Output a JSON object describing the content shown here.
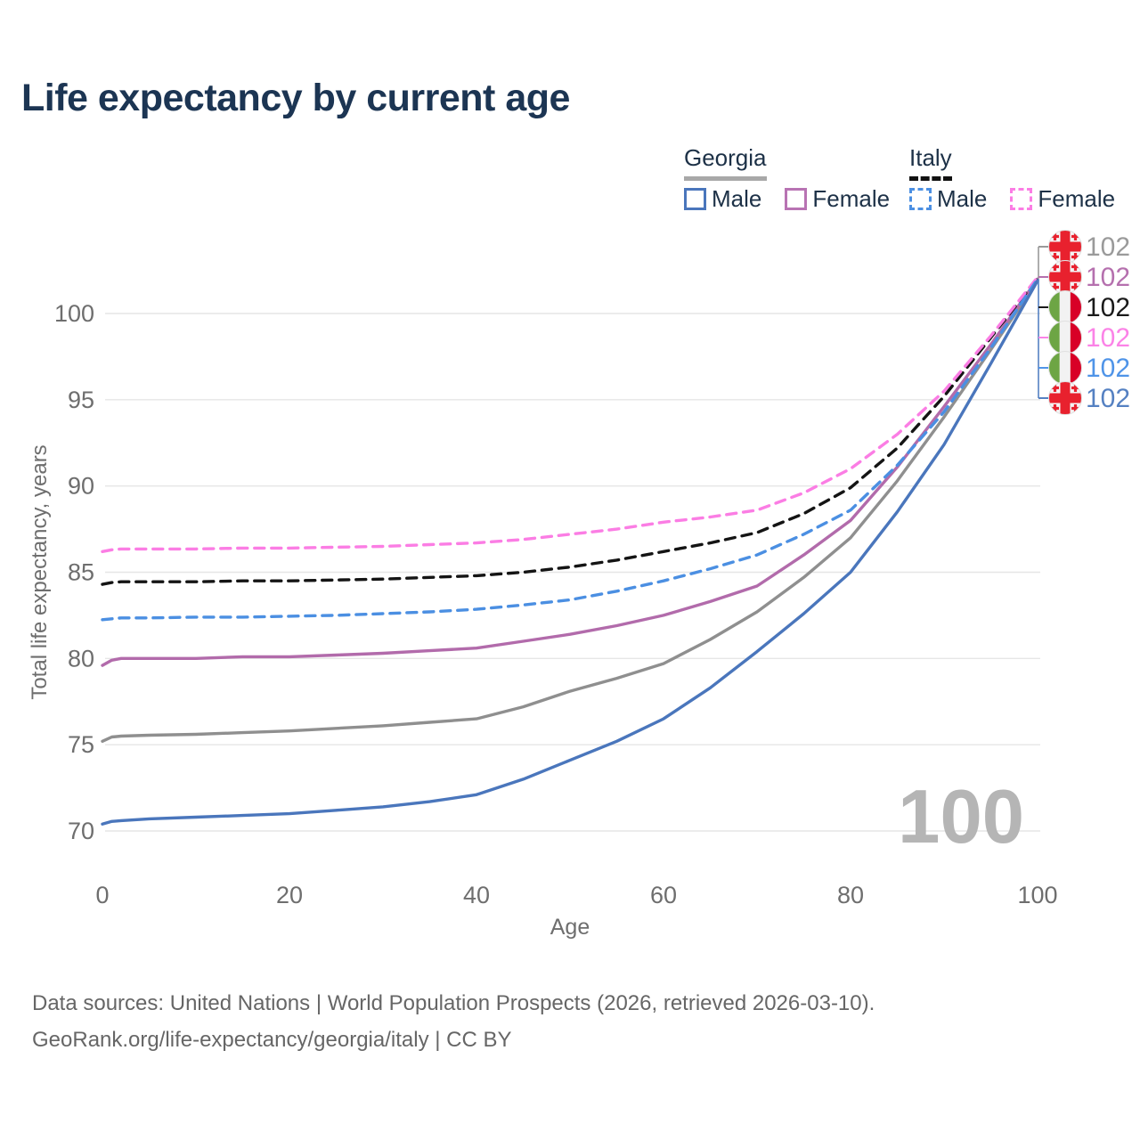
{
  "title": "Life expectancy by current age",
  "legend": {
    "groups": [
      {
        "country": "Georgia",
        "underline": "solid",
        "underline_color": "#a8a8a8",
        "items": [
          {
            "label": "Male",
            "color": "#4a76bc",
            "dash": "solid"
          },
          {
            "label": "Female",
            "color": "#b873b3",
            "dash": "solid"
          }
        ]
      },
      {
        "country": "Italy",
        "underline": "dashed",
        "underline_color": "#111111",
        "items": [
          {
            "label": "Male",
            "color": "#4b8fe2",
            "dash": "dashed"
          },
          {
            "label": "Female",
            "color": "#fb7de4",
            "dash": "dashed"
          }
        ]
      }
    ]
  },
  "y_axis": {
    "title": "Total life expectancy, years",
    "ticks": [
      100,
      95,
      90,
      85,
      80,
      75,
      70
    ]
  },
  "x_axis": {
    "label": "Age",
    "ticks": [
      0,
      20,
      40,
      60,
      80,
      100
    ]
  },
  "watermark": "100",
  "end_labels": [
    {
      "series": "georgia-all",
      "flag": "georgia",
      "value": "102",
      "color": "#9a9a9a"
    },
    {
      "series": "georgia-female",
      "flag": "georgia",
      "value": "102",
      "color": "#b570ae"
    },
    {
      "series": "italy-all",
      "flag": "italy",
      "value": "102",
      "color": "#1a1a1a"
    },
    {
      "series": "italy-female",
      "flag": "italy",
      "value": "102",
      "color": "#fb83e7"
    },
    {
      "series": "italy-male",
      "flag": "italy",
      "value": "102",
      "color": "#4f94e8"
    },
    {
      "series": "georgia-male",
      "flag": "georgia",
      "value": "102",
      "color": "#5581c2"
    }
  ],
  "footer": {
    "line1": "Data sources: United Nations | World Population Prospects (2026, retrieved 2026-03-10).",
    "line2": "GeoRank.org/life-expectancy/georgia/italy | CC BY"
  },
  "chart_data": {
    "type": "line",
    "title": "Life expectancy by current age",
    "xlabel": "Age",
    "ylabel": "Total life expectancy, years",
    "xlim": [
      0,
      100
    ],
    "ylim": [
      68.5,
      103
    ],
    "grid": true,
    "x": [
      0,
      1,
      2,
      5,
      10,
      15,
      20,
      25,
      30,
      35,
      40,
      45,
      50,
      55,
      60,
      65,
      70,
      75,
      80,
      85,
      90,
      95,
      100
    ],
    "series": [
      {
        "id": "georgia-all",
        "name": "Georgia",
        "color": "#8f8f8f",
        "dash": "solid",
        "values": [
          75.2,
          75.45,
          75.5,
          75.55,
          75.6,
          75.7,
          75.8,
          75.95,
          76.1,
          76.3,
          76.5,
          77.2,
          78.1,
          78.85,
          79.7,
          81.1,
          82.7,
          84.7,
          87.0,
          90.3,
          94.0,
          97.9,
          101.9
        ]
      },
      {
        "id": "georgia-female",
        "name": "Georgia Female",
        "color": "#b26bab",
        "dash": "solid",
        "values": [
          79.6,
          79.9,
          80.0,
          80.0,
          80.0,
          80.1,
          80.1,
          80.2,
          80.3,
          80.45,
          80.6,
          81.0,
          81.4,
          81.9,
          82.5,
          83.3,
          84.2,
          86.0,
          88.0,
          91.1,
          94.6,
          98.2,
          102.0
        ]
      },
      {
        "id": "italy-all",
        "name": "Italy",
        "color": "#141414",
        "dash": "dashed",
        "values": [
          84.3,
          84.4,
          84.45,
          84.45,
          84.45,
          84.5,
          84.5,
          84.55,
          84.6,
          84.7,
          84.8,
          85.0,
          85.3,
          85.7,
          86.2,
          86.7,
          87.3,
          88.4,
          89.9,
          92.2,
          95.2,
          98.6,
          102.05
        ]
      },
      {
        "id": "italy-female",
        "name": "Italy Female",
        "color": "#fb7de4",
        "dash": "dashed",
        "values": [
          86.2,
          86.3,
          86.35,
          86.35,
          86.35,
          86.4,
          86.4,
          86.45,
          86.5,
          86.6,
          86.7,
          86.9,
          87.2,
          87.5,
          87.9,
          88.2,
          88.6,
          89.6,
          91.0,
          93.0,
          95.5,
          98.7,
          102.1
        ]
      },
      {
        "id": "italy-male",
        "name": "Italy Male",
        "color": "#4b8fe2",
        "dash": "dashed",
        "values": [
          82.25,
          82.3,
          82.35,
          82.35,
          82.4,
          82.4,
          82.45,
          82.5,
          82.6,
          82.7,
          82.85,
          83.1,
          83.4,
          83.9,
          84.5,
          85.2,
          86.0,
          87.2,
          88.6,
          91.2,
          94.3,
          98.0,
          102.0
        ]
      },
      {
        "id": "georgia-male",
        "name": "Georgia Male",
        "color": "#4a76bc",
        "dash": "solid",
        "values": [
          70.4,
          70.55,
          70.6,
          70.7,
          70.8,
          70.9,
          71.0,
          71.2,
          71.4,
          71.7,
          72.1,
          73.0,
          74.1,
          75.2,
          76.5,
          78.3,
          80.4,
          82.6,
          85.0,
          88.5,
          92.4,
          97.1,
          101.9
        ]
      }
    ]
  }
}
